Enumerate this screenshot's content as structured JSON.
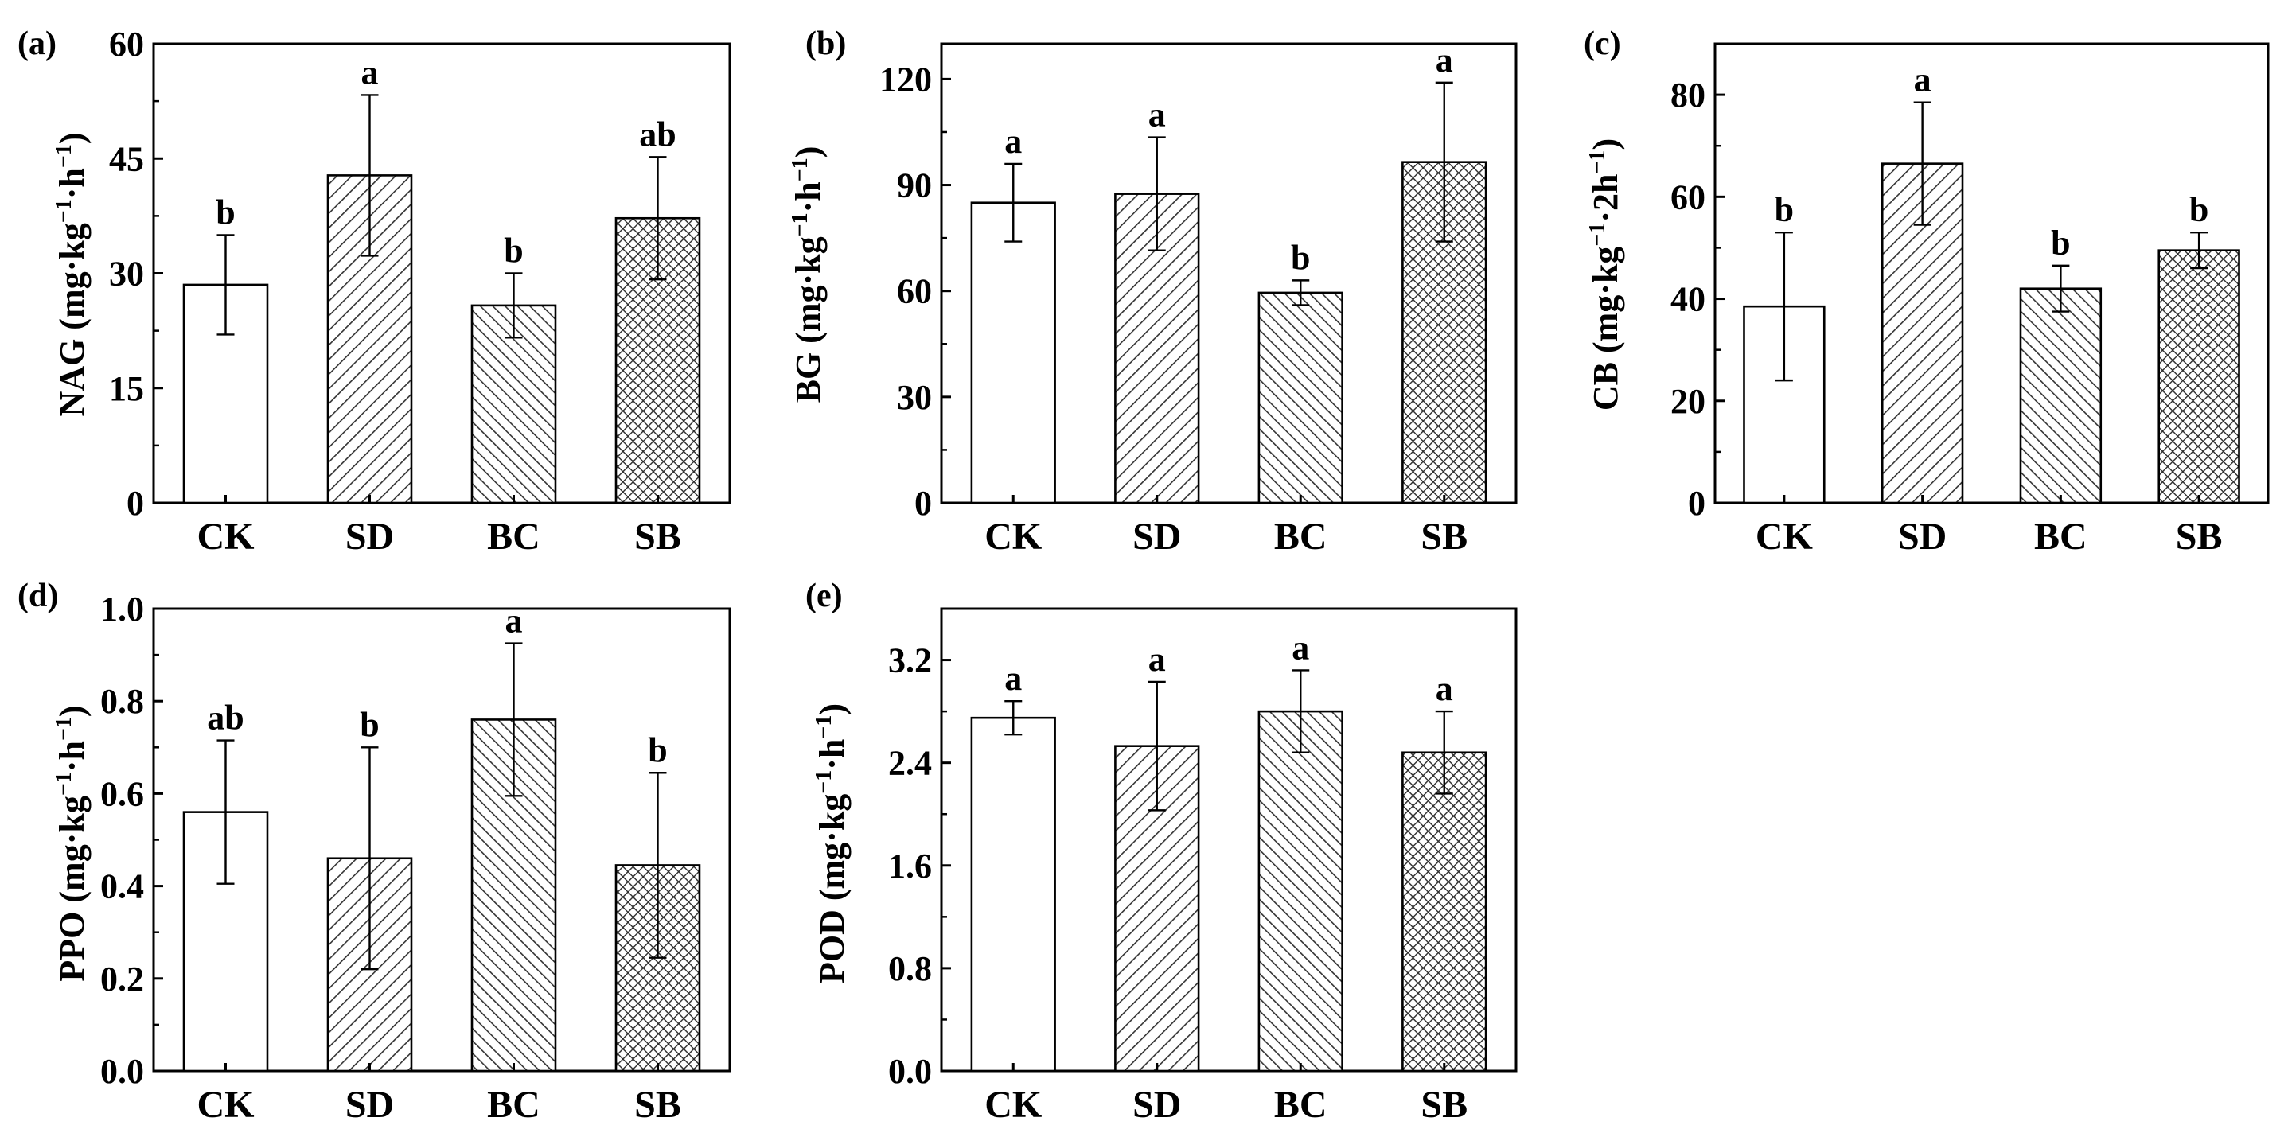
{
  "chart_data": [
    {
      "type": "bar",
      "panel": "(a)",
      "ylabel": {
        "main": "NAG (mg·kg",
        "sup1": "−1",
        "mid": "·h",
        "sup2": "−1",
        "end": ")"
      },
      "categories": [
        "CK",
        "SD",
        "BC",
        "SB"
      ],
      "values": [
        28.5,
        42.8,
        25.8,
        37.2
      ],
      "errors": [
        6.5,
        10.5,
        4.2,
        8.0
      ],
      "letters": [
        "b",
        "a",
        "b",
        "ab"
      ],
      "patterns": [
        "none",
        "diag-sparse",
        "diag-dense",
        "cross"
      ],
      "ylim": [
        0,
        60
      ],
      "yticks": [
        "0",
        "15",
        "30",
        "45",
        "60"
      ]
    },
    {
      "type": "bar",
      "panel": "(b)",
      "ylabel": {
        "main": "BG (mg·kg",
        "sup1": "−1",
        "mid": "·h",
        "sup2": "−1",
        "end": ")"
      },
      "categories": [
        "CK",
        "SD",
        "BC",
        "SB"
      ],
      "values": [
        85.0,
        87.5,
        59.5,
        96.5
      ],
      "errors": [
        11.0,
        16.0,
        3.5,
        22.5
      ],
      "letters": [
        "a",
        "a",
        "b",
        "a"
      ],
      "patterns": [
        "none",
        "diag-sparse",
        "diag-dense",
        "cross"
      ],
      "ylim": [
        0,
        130
      ],
      "yticks": [
        "0",
        "30",
        "60",
        "90",
        "120"
      ]
    },
    {
      "type": "bar",
      "panel": "(c)",
      "ylabel": {
        "main": "CB (mg·kg",
        "sup1": "−1",
        "mid": "·2h",
        "sup2": "−1",
        "end": ")"
      },
      "categories": [
        "CK",
        "SD",
        "BC",
        "SB"
      ],
      "values": [
        38.5,
        66.5,
        42.0,
        49.5
      ],
      "errors": [
        14.5,
        12.0,
        4.5,
        3.5
      ],
      "letters": [
        "b",
        "a",
        "b",
        "b"
      ],
      "patterns": [
        "none",
        "diag-sparse",
        "diag-dense",
        "cross"
      ],
      "ylim": [
        0,
        90
      ],
      "yticks": [
        "0",
        "20",
        "40",
        "60",
        "80"
      ]
    },
    {
      "type": "bar",
      "panel": "(d)",
      "ylabel": {
        "main": "PPO (mg·kg",
        "sup1": "−1",
        "mid": "·h",
        "sup2": "−1",
        "end": ")"
      },
      "categories": [
        "CK",
        "SD",
        "BC",
        "SB"
      ],
      "values": [
        0.56,
        0.46,
        0.76,
        0.445
      ],
      "errors": [
        0.155,
        0.24,
        0.165,
        0.2
      ],
      "letters": [
        "ab",
        "b",
        "a",
        "b"
      ],
      "patterns": [
        "none",
        "diag-sparse",
        "diag-dense",
        "cross"
      ],
      "ylim": [
        0,
        1.0
      ],
      "yticks": [
        "0.0",
        "0.2",
        "0.4",
        "0.6",
        "0.8",
        "1.0"
      ]
    },
    {
      "type": "bar",
      "panel": "(e)",
      "ylabel": {
        "main": "POD (mg·kg",
        "sup1": "−1",
        "mid": "·h",
        "sup2": "−1",
        "end": ")"
      },
      "categories": [
        "CK",
        "SD",
        "BC",
        "SB"
      ],
      "values": [
        2.75,
        2.53,
        2.8,
        2.48
      ],
      "errors": [
        0.13,
        0.5,
        0.32,
        0.32
      ],
      "letters": [
        "a",
        "a",
        "a",
        "a"
      ],
      "patterns": [
        "none",
        "diag-sparse",
        "diag-dense",
        "cross"
      ],
      "ylim": [
        0,
        3.6
      ],
      "yticks": [
        "0.0",
        "0.8",
        "1.6",
        "2.4",
        "3.2"
      ]
    }
  ]
}
